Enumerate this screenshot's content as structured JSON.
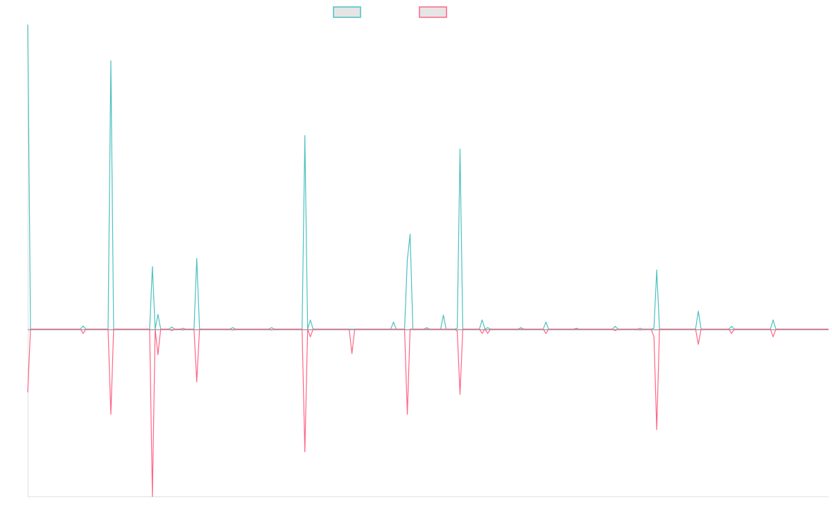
{
  "chart_data": {
    "type": "line",
    "title": "",
    "xlabel": "",
    "ylabel": "",
    "xlim": [
      0,
      289
    ],
    "ylim": [
      -55,
      100
    ],
    "grid": false,
    "legend_position": "top-center",
    "series": [
      {
        "name": "",
        "color": "#4bc0c0",
        "points": [
          [
            0,
            100
          ],
          [
            20,
            1
          ],
          [
            30,
            88.2
          ],
          [
            45,
            20.5
          ],
          [
            47,
            4.8
          ],
          [
            52,
            0.7
          ],
          [
            56,
            0.3
          ],
          [
            61,
            23.2
          ],
          [
            74,
            0.5
          ],
          [
            88,
            0.5
          ],
          [
            100,
            63.6
          ],
          [
            102,
            3
          ],
          [
            132,
            2.3
          ],
          [
            137,
            22.8
          ],
          [
            138,
            31.2
          ],
          [
            144,
            0.5
          ],
          [
            150,
            4.6
          ],
          [
            155,
            0.3
          ],
          [
            156,
            59.2
          ],
          [
            164,
            3
          ],
          [
            166,
            0.5
          ],
          [
            178,
            0.5
          ],
          [
            187,
            2.3
          ],
          [
            198,
            0.3
          ],
          [
            212,
            0.9
          ],
          [
            221,
            0.3
          ],
          [
            226,
            0.3
          ],
          [
            227,
            19.4
          ],
          [
            242,
            5.9
          ],
          [
            254,
            0.9
          ],
          [
            269,
            3
          ]
        ]
      },
      {
        "name": "",
        "color": "#ff6384",
        "points": [
          [
            0,
            -20.7
          ],
          [
            20,
            -1.4
          ],
          [
            30,
            -28
          ],
          [
            45,
            -55
          ],
          [
            47,
            -8.4
          ],
          [
            52,
            -0.5
          ],
          [
            56,
            -0.3
          ],
          [
            61,
            -17.3
          ],
          [
            74,
            -0.3
          ],
          [
            88,
            -0.3
          ],
          [
            100,
            -40.3
          ],
          [
            102,
            -2.5
          ],
          [
            117,
            -8
          ],
          [
            137,
            -28
          ],
          [
            155,
            -0.7
          ],
          [
            156,
            -21.4
          ],
          [
            164,
            -1.4
          ],
          [
            166,
            -1.4
          ],
          [
            187,
            -1.4
          ],
          [
            212,
            -0.5
          ],
          [
            221,
            -0.3
          ],
          [
            226,
            -2.5
          ],
          [
            227,
            -33
          ],
          [
            242,
            -5
          ],
          [
            254,
            -1.4
          ],
          [
            269,
            -2.5
          ]
        ]
      }
    ]
  }
}
